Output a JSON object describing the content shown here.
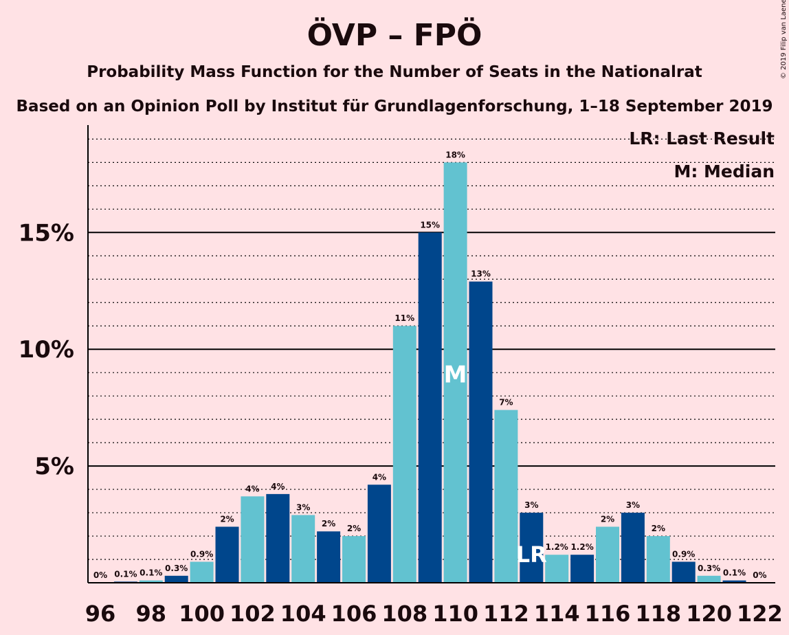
{
  "copyright": "© 2019 Filip van Laenen",
  "legend": {
    "last_result": "LR: Last Result",
    "median": "M: Median"
  },
  "chart_data": {
    "type": "bar",
    "title": "ÖVP – FPÖ",
    "subtitle": "Probability Mass Function for the Number of Seats in the Nationalrat",
    "subtitle2": "Based on an Opinion Poll by Institut für Grundlagenforschung, 1–18 September 2019",
    "xlabel": "",
    "ylabel": "",
    "ylim": [
      0,
      19.6
    ],
    "y_ticks": [
      5,
      10,
      15
    ],
    "y_tick_labels": [
      "5%",
      "10%",
      "15%"
    ],
    "x_tick_labels": [
      "96",
      "98",
      "100",
      "102",
      "104",
      "106",
      "108",
      "110",
      "112",
      "114",
      "116",
      "118",
      "120",
      "122"
    ],
    "categories": [
      96,
      97,
      98,
      99,
      100,
      101,
      102,
      103,
      104,
      105,
      106,
      107,
      108,
      109,
      110,
      111,
      112,
      113,
      114,
      115,
      116,
      117,
      118,
      119,
      120,
      121,
      122
    ],
    "values": [
      0,
      0.05,
      0.1,
      0.3,
      0.9,
      2.4,
      3.7,
      3.8,
      2.9,
      2.2,
      2.0,
      4.2,
      11.0,
      15.0,
      18.0,
      12.9,
      7.4,
      3.0,
      1.2,
      1.2,
      2.4,
      3.0,
      2.0,
      0.9,
      0.3,
      0.1,
      0
    ],
    "labels": [
      "0%",
      "0.1%",
      "0.1%",
      "0.3%",
      "0.9%",
      "2%",
      "4%",
      "4%",
      "3%",
      "2%",
      "2%",
      "4%",
      "11%",
      "15%",
      "18%",
      "13%",
      "7%",
      "3%",
      "1.2%",
      "1.2%",
      "2%",
      "3%",
      "2%",
      "0.9%",
      "0.3%",
      "0.1%",
      "0%"
    ],
    "median": 110,
    "median_label": "M",
    "last_result": 113,
    "last_result_label": "LR",
    "colors": {
      "dark": "#00468c",
      "light": "#62c2d0",
      "axis": "#000000",
      "background": "#ffe2e5"
    },
    "grid": true,
    "legend_position": "top-right"
  }
}
